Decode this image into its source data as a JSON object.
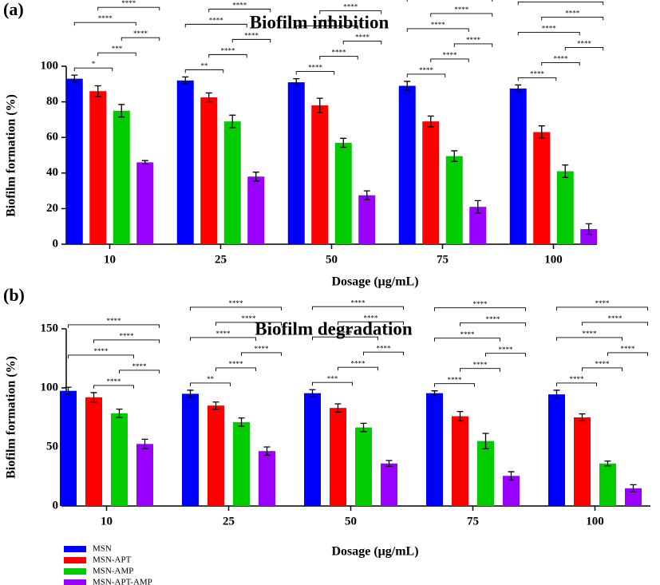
{
  "chart_data": [
    {
      "type": "bar",
      "panel_label": "(a)",
      "title": "Biofilm inhibition",
      "x_label": "Dosage (μg/mL)",
      "y_label": "Biofilm formation (%)",
      "categories": [
        "10",
        "25",
        "50",
        "75",
        "100"
      ],
      "series": [
        {
          "color": "#0000ff",
          "values": [
            93,
            92,
            91,
            89,
            87.5
          ],
          "errors": [
            2,
            2,
            2,
            2.5,
            2
          ]
        },
        {
          "color": "#ff0000",
          "values": [
            86,
            82.5,
            78,
            69,
            63
          ],
          "errors": [
            3,
            2.5,
            4,
            3,
            3.5
          ]
        },
        {
          "color": "#00cc00",
          "values": [
            75,
            69,
            57,
            49.5,
            41
          ],
          "errors": [
            3.5,
            3.5,
            2.5,
            3,
            3.5
          ]
        },
        {
          "color": "#9900ff",
          "values": [
            46,
            38,
            27.5,
            21,
            8.5
          ],
          "errors": [
            1,
            2.5,
            2.5,
            3.5,
            3
          ]
        }
      ],
      "ylim": [
        0,
        100
      ],
      "yticks": [
        0,
        20,
        40,
        60,
        80,
        100
      ],
      "significance": [
        [
          {
            "pair": [
              "MSN",
              "MSN-APT"
            ],
            "label": "*"
          },
          {
            "pair": [
              "MSN",
              "MSN-AMP"
            ],
            "label": "****"
          },
          {
            "pair": [
              "MSN",
              "MSN-APT-AMP"
            ],
            "label": "****"
          },
          {
            "pair": [
              "MSN-APT",
              "MSN-AMP"
            ],
            "label": "***"
          },
          {
            "pair": [
              "MSN-APT",
              "MSN-APT-AMP"
            ],
            "label": "****"
          },
          {
            "pair": [
              "MSN-AMP",
              "MSN-APT-AMP"
            ],
            "label": "****"
          }
        ],
        [
          {
            "pair": [
              "MSN",
              "MSN-APT"
            ],
            "label": "**"
          },
          {
            "pair": [
              "MSN",
              "MSN-AMP"
            ],
            "label": "****"
          },
          {
            "pair": [
              "MSN",
              "MSN-APT-AMP"
            ],
            "label": "****"
          },
          {
            "pair": [
              "MSN-APT",
              "MSN-AMP"
            ],
            "label": "****"
          },
          {
            "pair": [
              "MSN-APT",
              "MSN-APT-AMP"
            ],
            "label": "****"
          },
          {
            "pair": [
              "MSN-AMP",
              "MSN-APT-AMP"
            ],
            "label": "****"
          }
        ],
        [
          {
            "pair": [
              "MSN",
              "MSN-APT"
            ],
            "label": "****"
          },
          {
            "pair": [
              "MSN",
              "MSN-AMP"
            ],
            "label": "****"
          },
          {
            "pair": [
              "MSN",
              "MSN-APT-AMP"
            ],
            "label": "****"
          },
          {
            "pair": [
              "MSN-APT",
              "MSN-AMP"
            ],
            "label": "****"
          },
          {
            "pair": [
              "MSN-APT",
              "MSN-APT-AMP"
            ],
            "label": "****"
          },
          {
            "pair": [
              "MSN-AMP",
              "MSN-APT-AMP"
            ],
            "label": "****"
          }
        ],
        [
          {
            "pair": [
              "MSN",
              "MSN-APT"
            ],
            "label": "****"
          },
          {
            "pair": [
              "MSN",
              "MSN-AMP"
            ],
            "label": "****"
          },
          {
            "pair": [
              "MSN",
              "MSN-APT-AMP"
            ],
            "label": "****"
          },
          {
            "pair": [
              "MSN-APT",
              "MSN-AMP"
            ],
            "label": "****"
          },
          {
            "pair": [
              "MSN-APT",
              "MSN-APT-AMP"
            ],
            "label": "****"
          },
          {
            "pair": [
              "MSN-AMP",
              "MSN-APT-AMP"
            ],
            "label": "****"
          }
        ],
        [
          {
            "pair": [
              "MSN",
              "MSN-APT"
            ],
            "label": "****"
          },
          {
            "pair": [
              "MSN",
              "MSN-AMP"
            ],
            "label": "****"
          },
          {
            "pair": [
              "MSN",
              "MSN-APT-AMP"
            ],
            "label": "****"
          },
          {
            "pair": [
              "MSN-APT",
              "MSN-AMP"
            ],
            "label": "****"
          },
          {
            "pair": [
              "MSN-APT",
              "MSN-APT-AMP"
            ],
            "label": "****"
          },
          {
            "pair": [
              "MSN-AMP",
              "MSN-APT-AMP"
            ],
            "label": "****"
          }
        ]
      ]
    },
    {
      "type": "bar",
      "panel_label": "(b)",
      "title": "Biofilm degradation",
      "x_label": "Dosage (μg/mL)",
      "y_label": "Biofilm formation (%)",
      "categories": [
        "10",
        "25",
        "50",
        "75",
        "100"
      ],
      "series": [
        {
          "color": "#0000ff",
          "values": [
            97.5,
            95,
            95.5,
            95.5,
            94.5
          ],
          "errors": [
            3,
            3,
            3,
            2,
            3.5
          ]
        },
        {
          "color": "#ff0000",
          "values": [
            92,
            85,
            83,
            76,
            75
          ],
          "errors": [
            4,
            3,
            3.5,
            4,
            3
          ]
        },
        {
          "color": "#00cc00",
          "values": [
            78.5,
            71,
            66.5,
            55,
            36
          ],
          "errors": [
            3.5,
            3.5,
            3.5,
            6.5,
            2
          ]
        },
        {
          "color": "#9900ff",
          "values": [
            52.5,
            46.5,
            36,
            25.5,
            15
          ],
          "errors": [
            4,
            3.5,
            2.5,
            3.5,
            3
          ]
        }
      ],
      "ylim": [
        0,
        150
      ],
      "yticks": [
        0,
        50,
        100,
        150
      ],
      "significance": [
        [
          {
            "pair": [
              "MSN",
              "MSN-AMP"
            ],
            "label": "****"
          },
          {
            "pair": [
              "MSN",
              "MSN-APT-AMP"
            ],
            "label": "****"
          },
          {
            "pair": [
              "MSN-APT",
              "MSN-AMP"
            ],
            "label": "****"
          },
          {
            "pair": [
              "MSN-APT",
              "MSN-APT-AMP"
            ],
            "label": "****"
          },
          {
            "pair": [
              "MSN-AMP",
              "MSN-APT-AMP"
            ],
            "label": "****"
          }
        ],
        [
          {
            "pair": [
              "MSN",
              "MSN-APT"
            ],
            "label": "**"
          },
          {
            "pair": [
              "MSN",
              "MSN-AMP"
            ],
            "label": "****"
          },
          {
            "pair": [
              "MSN",
              "MSN-APT-AMP"
            ],
            "label": "****"
          },
          {
            "pair": [
              "MSN-APT",
              "MSN-AMP"
            ],
            "label": "****"
          },
          {
            "pair": [
              "MSN-APT",
              "MSN-APT-AMP"
            ],
            "label": "****"
          },
          {
            "pair": [
              "MSN-AMP",
              "MSN-APT-AMP"
            ],
            "label": "****"
          }
        ],
        [
          {
            "pair": [
              "MSN",
              "MSN-APT"
            ],
            "label": "***"
          },
          {
            "pair": [
              "MSN",
              "MSN-AMP"
            ],
            "label": "****"
          },
          {
            "pair": [
              "MSN",
              "MSN-APT-AMP"
            ],
            "label": "****"
          },
          {
            "pair": [
              "MSN-APT",
              "MSN-AMP"
            ],
            "label": "****"
          },
          {
            "pair": [
              "MSN-APT",
              "MSN-APT-AMP"
            ],
            "label": "****"
          },
          {
            "pair": [
              "MSN-AMP",
              "MSN-APT-AMP"
            ],
            "label": "****"
          }
        ],
        [
          {
            "pair": [
              "MSN",
              "MSN-APT"
            ],
            "label": "****"
          },
          {
            "pair": [
              "MSN",
              "MSN-AMP"
            ],
            "label": "****"
          },
          {
            "pair": [
              "MSN",
              "MSN-APT-AMP"
            ],
            "label": "****"
          },
          {
            "pair": [
              "MSN-APT",
              "MSN-AMP"
            ],
            "label": "****"
          },
          {
            "pair": [
              "MSN-APT",
              "MSN-APT-AMP"
            ],
            "label": "****"
          },
          {
            "pair": [
              "MSN-AMP",
              "MSN-APT-AMP"
            ],
            "label": "****"
          }
        ],
        [
          {
            "pair": [
              "MSN",
              "MSN-APT"
            ],
            "label": "****"
          },
          {
            "pair": [
              "MSN",
              "MSN-AMP"
            ],
            "label": "****"
          },
          {
            "pair": [
              "MSN",
              "MSN-APT-AMP"
            ],
            "label": "****"
          },
          {
            "pair": [
              "MSN-APT",
              "MSN-AMP"
            ],
            "label": "****"
          },
          {
            "pair": [
              "MSN-APT",
              "MSN-APT-AMP"
            ],
            "label": "****"
          },
          {
            "pair": [
              "MSN-AMP",
              "MSN-APT-AMP"
            ],
            "label": "****"
          }
        ]
      ]
    }
  ],
  "legend": [
    {
      "name": "MSN",
      "color": "#0000ff"
    },
    {
      "name": "MSN-APT",
      "color": "#ff0000"
    },
    {
      "name": "MSN-AMP",
      "color": "#00cc00"
    },
    {
      "name": "MSN-APT-AMP",
      "color": "#9900ff"
    }
  ]
}
